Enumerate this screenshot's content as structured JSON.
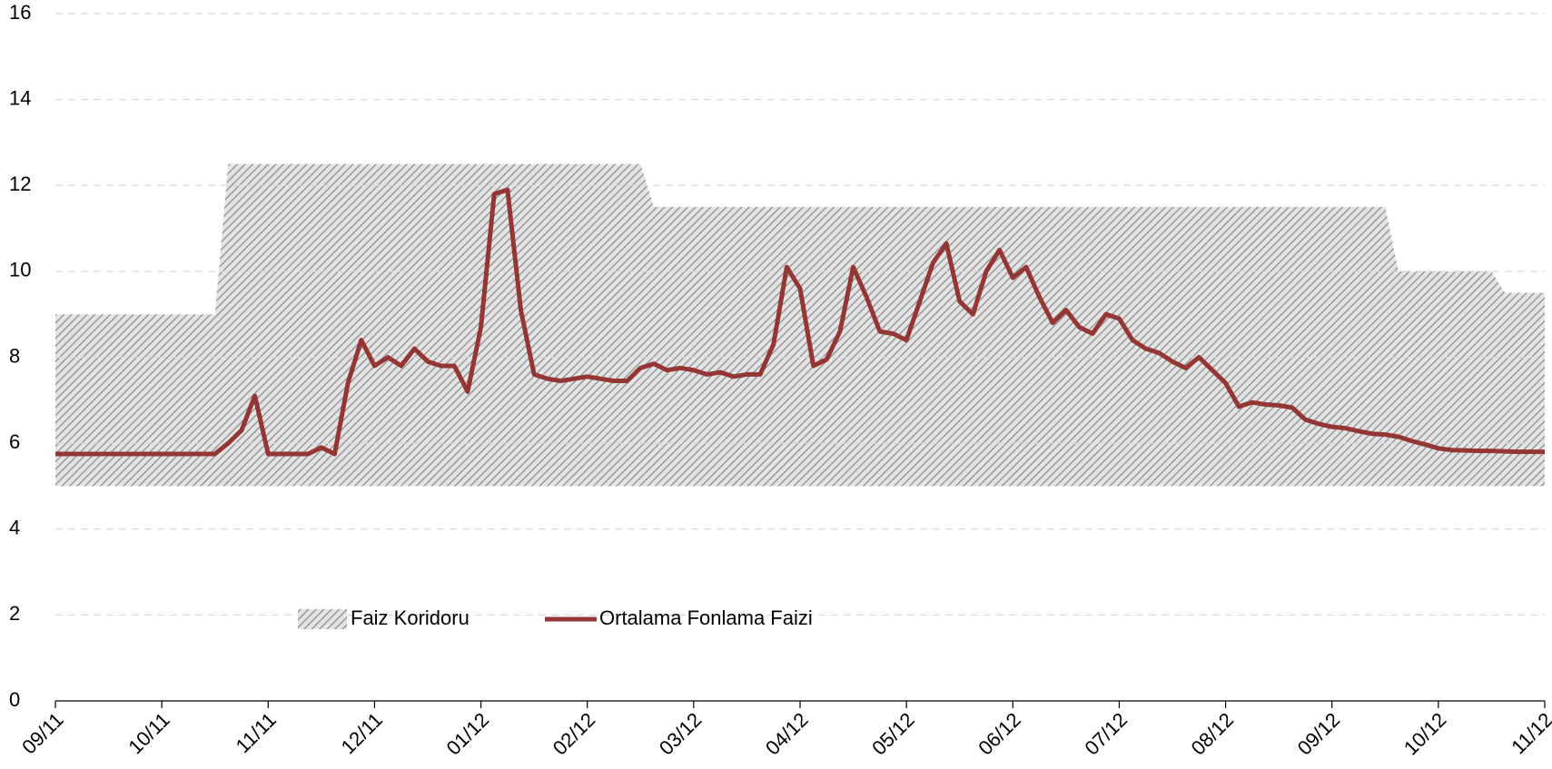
{
  "chart_data": {
    "type": "line",
    "categories": [
      "09/11",
      null,
      null,
      null,
      null,
      null,
      null,
      null,
      "10/11",
      null,
      null,
      null,
      null,
      null,
      null,
      null,
      "11/11",
      null,
      null,
      null,
      null,
      null,
      null,
      null,
      "12/11",
      null,
      null,
      null,
      null,
      null,
      null,
      null,
      "01/12",
      null,
      null,
      null,
      null,
      null,
      null,
      null,
      "02/12",
      null,
      null,
      null,
      null,
      null,
      null,
      null,
      "03/12",
      null,
      null,
      null,
      null,
      null,
      null,
      null,
      "04/12",
      null,
      null,
      null,
      null,
      null,
      null,
      null,
      "05/12",
      null,
      null,
      null,
      null,
      null,
      null,
      null,
      "06/12",
      null,
      null,
      null,
      null,
      null,
      null,
      null,
      "07/12",
      null,
      null,
      null,
      null,
      null,
      null,
      null,
      "08/12",
      null,
      null,
      null,
      null,
      null,
      null,
      null,
      "09/12",
      null,
      null,
      null,
      null,
      null,
      null,
      null,
      "10/12",
      null,
      null,
      null,
      null,
      null,
      null,
      null,
      "11/12"
    ],
    "series": [
      {
        "name": "Faiz Koridoru",
        "color": "#a6a6a6",
        "low": [
          5,
          5,
          5,
          5,
          5,
          5,
          5,
          5,
          5,
          5,
          5,
          5,
          5,
          5,
          5,
          5,
          5,
          5,
          5,
          5,
          5,
          5,
          5,
          5,
          5,
          5,
          5,
          5,
          5,
          5,
          5,
          5,
          5,
          5,
          5,
          5,
          5,
          5,
          5,
          5,
          5,
          5,
          5,
          5,
          5,
          5,
          5,
          5,
          5,
          5,
          5,
          5,
          5,
          5,
          5,
          5,
          5,
          5,
          5,
          5,
          5,
          5,
          5,
          5,
          5,
          5,
          5,
          5,
          5,
          5,
          5,
          5,
          5,
          5,
          5,
          5,
          5,
          5,
          5,
          5,
          5,
          5,
          5,
          5,
          5,
          5,
          5,
          5,
          5,
          5,
          5,
          5,
          5,
          5,
          5,
          5,
          5,
          5,
          5,
          5,
          5,
          5,
          5,
          5,
          5,
          5,
          5,
          5,
          5,
          5,
          5,
          5,
          5
        ],
        "values": [
          9,
          9,
          9,
          9,
          9,
          9,
          9,
          9,
          9,
          9,
          9,
          9,
          9,
          12.5,
          12.5,
          12.5,
          12.5,
          12.5,
          12.5,
          12.5,
          12.5,
          12.5,
          12.5,
          12.5,
          12.5,
          12.5,
          12.5,
          12.5,
          12.5,
          12.5,
          12.5,
          12.5,
          12.5,
          12.5,
          12.5,
          12.5,
          12.5,
          12.5,
          12.5,
          12.5,
          12.5,
          12.5,
          12.5,
          12.5,
          12.5,
          11.5,
          11.5,
          11.5,
          11.5,
          11.5,
          11.5,
          11.5,
          11.5,
          11.5,
          11.5,
          11.5,
          11.5,
          11.5,
          11.5,
          11.5,
          11.5,
          11.5,
          11.5,
          11.5,
          11.5,
          11.5,
          11.5,
          11.5,
          11.5,
          11.5,
          11.5,
          11.5,
          11.5,
          11.5,
          11.5,
          11.5,
          11.5,
          11.5,
          11.5,
          11.5,
          11.5,
          11.5,
          11.5,
          11.5,
          11.5,
          11.5,
          11.5,
          11.5,
          11.5,
          11.5,
          11.5,
          11.5,
          11.5,
          11.5,
          11.5,
          11.5,
          11.5,
          11.5,
          11.5,
          11.5,
          11.5,
          10,
          10,
          10,
          10,
          10,
          10,
          10,
          10,
          9.5,
          9.5,
          9.5,
          9.5
        ]
      },
      {
        "name": "Ortalama Fonlama Faizi",
        "color": "#943634",
        "values": [
          5.75,
          5.75,
          5.75,
          5.75,
          5.75,
          5.75,
          5.75,
          5.75,
          5.75,
          5.75,
          5.75,
          5.75,
          5.75,
          6.0,
          6.3,
          7.1,
          5.75,
          5.75,
          5.75,
          5.75,
          5.9,
          5.75,
          7.4,
          8.4,
          7.8,
          8.0,
          7.8,
          8.2,
          7.9,
          7.8,
          7.8,
          7.2,
          8.7,
          11.8,
          11.9,
          9.1,
          7.6,
          7.5,
          7.45,
          7.5,
          7.55,
          7.5,
          7.45,
          7.45,
          7.75,
          7.85,
          7.7,
          7.75,
          7.7,
          7.6,
          7.65,
          7.55,
          7.6,
          7.6,
          8.3,
          10.1,
          9.6,
          7.8,
          7.95,
          8.6,
          10.1,
          9.4,
          8.6,
          8.55,
          8.4,
          9.3,
          10.2,
          10.65,
          9.3,
          9.0,
          10.0,
          10.5,
          9.85,
          10.1,
          9.4,
          8.8,
          9.1,
          8.7,
          8.55,
          9.0,
          8.9,
          8.4,
          8.2,
          8.1,
          7.9,
          7.75,
          8.0,
          7.7,
          7.4,
          6.85,
          6.95,
          6.9,
          6.88,
          6.83,
          6.55,
          6.45,
          6.38,
          6.35,
          6.28,
          6.22,
          6.2,
          6.15,
          6.05,
          5.97,
          5.88,
          5.84,
          5.83,
          5.82,
          5.82,
          5.81,
          5.8,
          5.8,
          5.8
        ]
      }
    ],
    "ylim": [
      0,
      16
    ],
    "yticks": [
      0,
      2,
      4,
      6,
      8,
      10,
      12,
      14,
      16
    ],
    "grid": true,
    "legend": "bottom-left"
  }
}
